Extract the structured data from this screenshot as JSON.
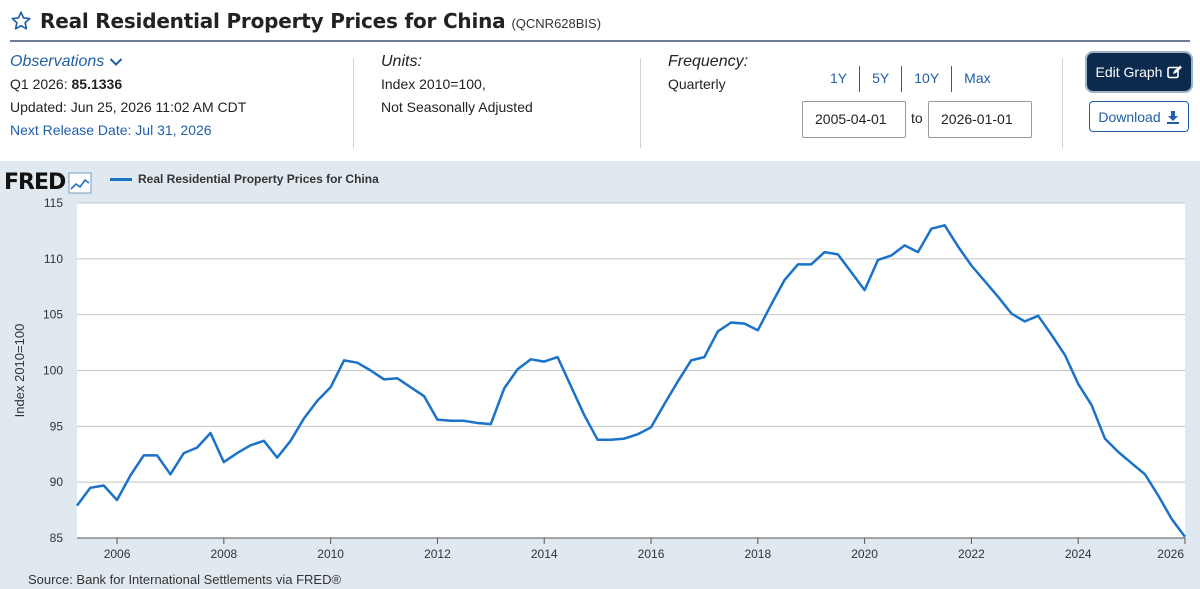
{
  "header": {
    "title": "Real Residential Property Prices for China",
    "series_id": "(QCNR628BIS)"
  },
  "observations": {
    "label": "Observations",
    "period": "Q1 2026:",
    "value": "85.1336",
    "updated": "Updated: Jun 25, 2026 11:02 AM CDT",
    "next_release": "Next Release Date: Jul 31, 2026"
  },
  "units": {
    "heading": "Units:",
    "line1": "Index 2010=100,",
    "line2": "Not Seasonally Adjusted"
  },
  "frequency": {
    "heading": "Frequency:",
    "value": "Quarterly"
  },
  "range": {
    "buttons": [
      "1Y",
      "5Y",
      "10Y",
      "Max"
    ],
    "start": "2005-04-01",
    "to_label": "to",
    "end": "2026-01-01"
  },
  "actions": {
    "edit_label": "Edit Graph",
    "download_label": "Download"
  },
  "logo": {
    "text": "FRED"
  },
  "source": "Source: Bank for International Settlements via FRED®",
  "colors": {
    "line": "#1a72c9",
    "accent": "#1f5fa8",
    "edit_bg": "#0c2a4e",
    "plot_bg": "#e1e9f0"
  },
  "chart_data": {
    "type": "line",
    "title": "",
    "ylabel": "Index 2010=100",
    "xlabel": "",
    "ylim": [
      85,
      115
    ],
    "xlim": [
      2005.25,
      2026.0
    ],
    "yticks": [
      85,
      90,
      95,
      100,
      105,
      110,
      115
    ],
    "xticks": [
      2006,
      2008,
      2010,
      2012,
      2014,
      2016,
      2018,
      2020,
      2022,
      2024,
      2026
    ],
    "legend": "top-left",
    "series": [
      {
        "name": "Real Residential Property Prices for China",
        "x": [
          2005.25,
          2005.5,
          2005.75,
          2006.0,
          2006.25,
          2006.5,
          2006.75,
          2007.0,
          2007.25,
          2007.5,
          2007.75,
          2008.0,
          2008.25,
          2008.5,
          2008.75,
          2009.0,
          2009.25,
          2009.5,
          2009.75,
          2010.0,
          2010.25,
          2010.5,
          2010.75,
          2011.0,
          2011.25,
          2011.5,
          2011.75,
          2012.0,
          2012.25,
          2012.5,
          2012.75,
          2013.0,
          2013.25,
          2013.5,
          2013.75,
          2014.0,
          2014.25,
          2014.5,
          2014.75,
          2015.0,
          2015.25,
          2015.5,
          2015.75,
          2016.0,
          2016.25,
          2016.5,
          2016.75,
          2017.0,
          2017.25,
          2017.5,
          2017.75,
          2018.0,
          2018.25,
          2018.5,
          2018.75,
          2019.0,
          2019.25,
          2019.5,
          2019.75,
          2020.0,
          2020.25,
          2020.5,
          2020.75,
          2021.0,
          2021.25,
          2021.5,
          2021.75,
          2022.0,
          2022.25,
          2022.5,
          2022.75,
          2023.0,
          2023.25,
          2023.5,
          2023.75,
          2024.0,
          2024.25,
          2024.5,
          2024.75,
          2025.0,
          2025.25,
          2025.5,
          2025.75,
          2026.0
        ],
        "values": [
          87.9,
          89.5,
          89.7,
          88.4,
          90.6,
          92.4,
          92.4,
          90.7,
          92.6,
          93.1,
          94.4,
          91.8,
          92.6,
          93.3,
          93.7,
          92.2,
          93.7,
          95.7,
          97.3,
          98.5,
          100.9,
          100.7,
          100.0,
          99.2,
          99.3,
          98.5,
          97.7,
          95.6,
          95.5,
          95.5,
          95.3,
          95.2,
          98.4,
          100.1,
          101.0,
          100.8,
          101.2,
          98.6,
          96.0,
          93.8,
          93.8,
          93.9,
          94.3,
          94.9,
          97.0,
          99.0,
          100.9,
          101.2,
          103.5,
          104.3,
          104.2,
          103.6,
          105.9,
          108.1,
          109.5,
          109.5,
          110.6,
          110.4,
          108.8,
          107.2,
          109.9,
          110.3,
          111.2,
          110.6,
          112.7,
          113.0,
          111.1,
          109.4,
          108.0,
          106.6,
          105.1,
          104.4,
          104.9,
          103.2,
          101.4,
          98.8,
          96.9,
          93.9,
          92.7,
          91.7,
          90.7,
          88.8,
          86.7,
          85.1
        ]
      }
    ]
  }
}
